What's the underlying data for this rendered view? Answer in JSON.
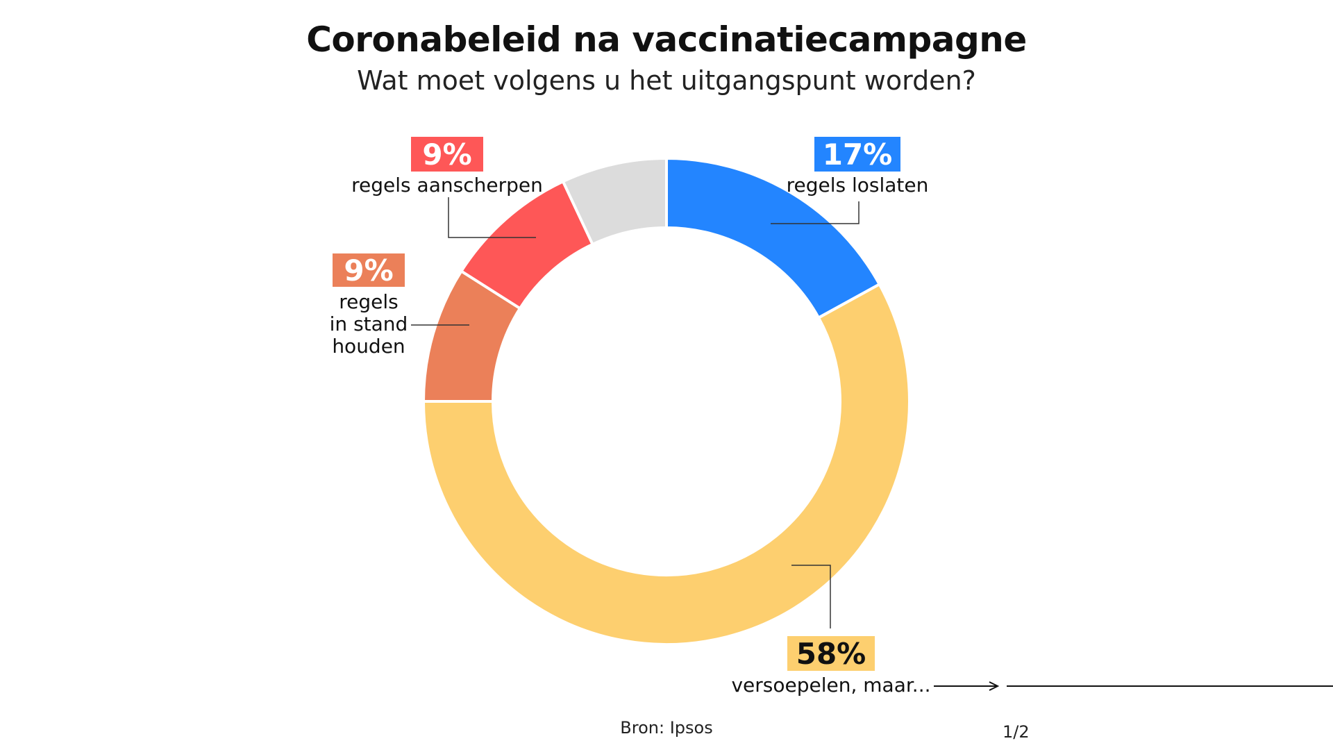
{
  "title": "Coronabeleid na vaccinatiecampagne",
  "subtitle": "Wat moet volgens u het uitgangspunt worden?",
  "source": "Bron: Ipsos",
  "page_indicator": "1/2",
  "chart_data": {
    "type": "pie",
    "variant": "donut",
    "start_angle_deg": 0,
    "direction": "clockwise",
    "slices": [
      {
        "value": 17,
        "pct_label": "17%",
        "label_lines": [
          "regels loslaten"
        ],
        "color": "#2385ff",
        "text_color": "#ffffff"
      },
      {
        "value": 58,
        "pct_label": "58%",
        "label_lines": [
          "versoepelen, maar..."
        ],
        "color": "#fdcf6f",
        "text_color": "#111111"
      },
      {
        "value": 9,
        "pct_label": "9%",
        "label_lines": [
          "regels",
          "in stand",
          "houden"
        ],
        "color": "#eb8059",
        "text_color": "#ffffff"
      },
      {
        "value": 9,
        "pct_label": "9%",
        "label_lines": [
          "regels aanscherpen"
        ],
        "color": "#fe5757",
        "text_color": "#ffffff"
      },
      {
        "value": 7,
        "pct_label": "",
        "label_lines": [],
        "color": "#dcdcdc",
        "text_color": "#111111"
      }
    ]
  }
}
